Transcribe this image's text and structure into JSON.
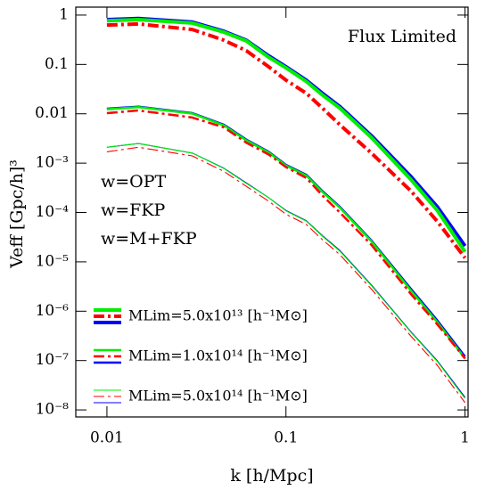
{
  "chart_data": {
    "type": "line",
    "annotation": "Flux Limited",
    "xlabel": "k [h/Mpc]",
    "ylabel": "Veff [Gpc/h]³",
    "log_x": true,
    "log_y": true,
    "xlim": [
      0.0067,
      1.04
    ],
    "ylim": [
      7.2e-09,
      1.45
    ],
    "xticks": [
      0.01,
      0.1,
      1
    ],
    "yticks": [
      1,
      0.1,
      0.01,
      {
        "value": 0.001,
        "label": "10⁻³"
      },
      {
        "value": 0.0001,
        "label": "10⁻⁴"
      },
      {
        "value": 1e-05,
        "label": "10⁻⁵"
      },
      {
        "value": 1e-06,
        "label": "10⁻⁶"
      },
      {
        "value": 1e-07,
        "label": "10⁻⁷"
      },
      {
        "value": 1e-08,
        "label": "10⁻⁸"
      }
    ],
    "x": [
      0.01,
      0.015,
      0.03,
      0.045,
      0.06,
      0.08,
      0.1,
      0.13,
      0.16,
      0.2,
      0.3,
      0.5,
      0.7,
      1.0
    ],
    "weights": [
      {
        "name": "w=OPT",
        "color": "#0000ff"
      },
      {
        "name": "w=FKP",
        "color": "#00ee00"
      },
      {
        "name": "w=M+FKP",
        "color": "#ff0000"
      }
    ],
    "groups": [
      {
        "name": "MLim=5.0x10¹³ [h⁻¹M⊙]",
        "series": [
          {
            "values": [
              0.81,
              0.85,
              0.72,
              0.47,
              0.31,
              0.15,
              0.09,
              0.048,
              0.026,
              0.014,
              0.0036,
              0.00053,
              0.00013,
              2.1e-05
            ]
          },
          {
            "values": [
              0.77,
              0.81,
              0.69,
              0.45,
              0.3,
              0.14,
              0.085,
              0.045,
              0.024,
              0.013,
              0.0033,
              0.00046,
              0.00011,
              1.6e-05
            ]
          },
          {
            "values": [
              0.63,
              0.66,
              0.51,
              0.31,
              0.19,
              0.09,
              0.048,
              0.026,
              0.013,
              0.006,
              0.0016,
              0.00027,
              6.6e-05,
              1.2e-05
            ]
          }
        ]
      },
      {
        "name": "MLim=1.0x10¹⁴ [h⁻¹M⊙]",
        "series": [
          {
            "values": [
              0.0127,
              0.0139,
              0.0103,
              0.006,
              0.003,
              0.0017,
              0.00092,
              0.00058,
              0.00027,
              0.00013,
              2.7e-05,
              2.8e-06,
              6.5e-07,
              1.2e-07
            ]
          },
          {
            "values": [
              0.0124,
              0.0136,
              0.0101,
              0.0058,
              0.0029,
              0.00165,
              0.00089,
              0.00056,
              0.00026,
              0.000125,
              2.6e-05,
              2.6e-06,
              6e-07,
              1.1e-07
            ]
          },
          {
            "values": [
              0.0103,
              0.0117,
              0.0084,
              0.0053,
              0.0026,
              0.0015,
              0.00083,
              0.0005,
              0.00022,
              0.0001,
              2.2e-05,
              2.2e-06,
              5.4e-07,
              1.1e-07
            ]
          }
        ]
      },
      {
        "name": "MLim=5.0x10¹⁴ [h⁻¹M⊙]",
        "series": [
          {
            "values": [
              0.0021,
              0.0025,
              0.0016,
              0.00079,
              0.0004,
              0.0002,
              0.00011,
              6.8e-05,
              3.4e-05,
              1.7e-05,
              3.4e-06,
              3.8e-07,
              9.9e-08,
              1.8e-08
            ]
          },
          {
            "values": [
              0.0021,
              0.0025,
              0.0016,
              0.00078,
              0.00039,
              0.0002,
              0.000108,
              6.7e-05,
              3.3e-05,
              1.65e-05,
              3.3e-06,
              3.7e-07,
              9.6e-08,
              1.7e-08
            ]
          },
          {
            "values": [
              0.0017,
              0.0021,
              0.0014,
              0.00068,
              0.00034,
              0.00017,
              9.2e-05,
              5.7e-05,
              2.8e-05,
              1.4e-05,
              2.8e-06,
              3.1e-07,
              8e-08,
              1.4e-08
            ]
          }
        ]
      }
    ]
  }
}
